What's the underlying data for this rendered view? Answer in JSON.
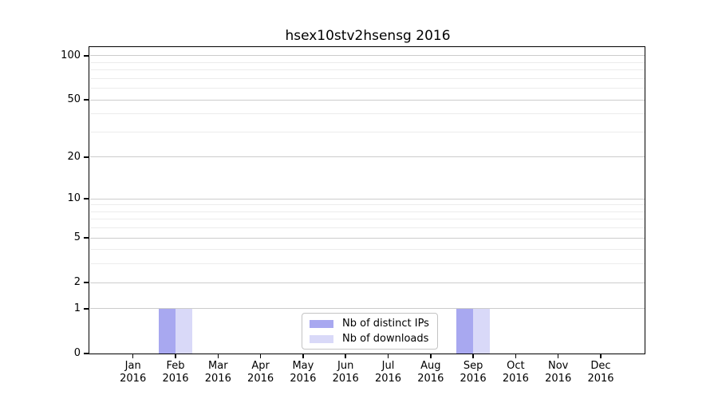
{
  "chart_data": {
    "type": "bar",
    "title": "hsex10stv2hsensg 2016",
    "categories": [
      "Jan",
      "Feb",
      "Mar",
      "Apr",
      "May",
      "Jun",
      "Jul",
      "Aug",
      "Sep",
      "Oct",
      "Nov",
      "Dec"
    ],
    "year_label": "2016",
    "series": [
      {
        "name": "Nb of distinct IPs",
        "color": "#a8a8f0",
        "values": [
          0,
          1,
          0,
          0,
          0,
          0,
          0,
          0,
          1,
          0,
          0,
          0
        ]
      },
      {
        "name": "Nb of downloads",
        "color": "#d9d9f8",
        "values": [
          0,
          1,
          0,
          0,
          0,
          0,
          0,
          0,
          1,
          0,
          0,
          0
        ]
      }
    ],
    "y_axis": {
      "scale": "log1p",
      "major_ticks": [
        0,
        1,
        2,
        5,
        10,
        20,
        50,
        100
      ],
      "minor_ticks": [
        3,
        4,
        6,
        7,
        8,
        9,
        30,
        40,
        60,
        70,
        80,
        90
      ],
      "ylim": [
        0,
        113
      ]
    },
    "xlabel": "",
    "ylabel": "",
    "grid": {
      "major_color": "#cccccc",
      "minor_color": "#ececec"
    },
    "legend": {
      "position": "lower center"
    }
  }
}
